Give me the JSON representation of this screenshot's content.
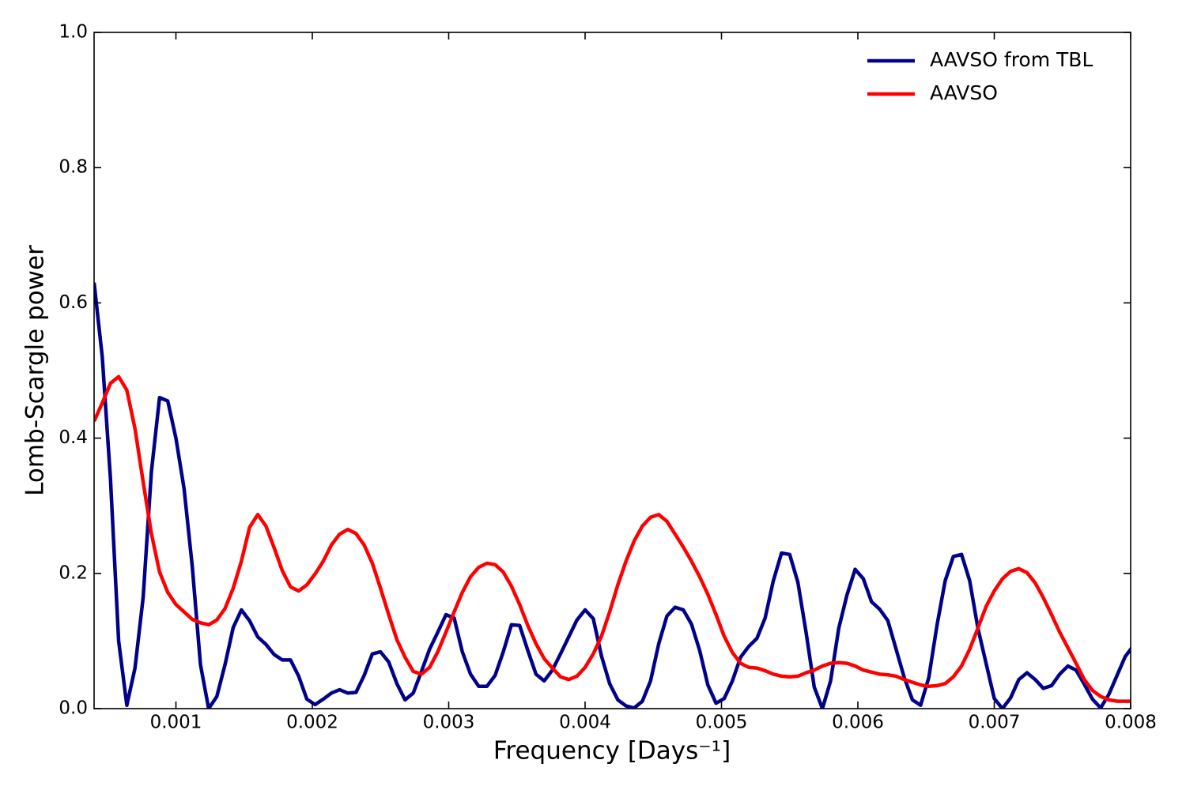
{
  "chart_data": {
    "type": "line",
    "xlabel": "Frequency [Days⁻¹]",
    "ylabel": "Lomb-Scargle power",
    "x": [
      0.0004,
      0.00046,
      0.00052,
      0.00058,
      0.00064,
      0.0007,
      0.00076,
      0.00082,
      0.00088,
      0.00094,
      0.001,
      0.00106,
      0.00112,
      0.00118,
      0.00124,
      0.0013,
      0.00136,
      0.00142,
      0.00148,
      0.00154,
      0.0016,
      0.00166,
      0.00172,
      0.00178,
      0.00184,
      0.0019,
      0.00196,
      0.00202,
      0.00208,
      0.00214,
      0.0022,
      0.00226,
      0.00232,
      0.00238,
      0.00244,
      0.0025,
      0.00256,
      0.00262,
      0.00268,
      0.00274,
      0.0028,
      0.00286,
      0.00292,
      0.00298,
      0.00304,
      0.0031,
      0.00316,
      0.00322,
      0.00328,
      0.00334,
      0.0034,
      0.00346,
      0.00352,
      0.00358,
      0.00364,
      0.0037,
      0.00376,
      0.00382,
      0.00388,
      0.00394,
      0.004,
      0.00406,
      0.00412,
      0.00418,
      0.00424,
      0.0043,
      0.00436,
      0.00442,
      0.00448,
      0.00454,
      0.0046,
      0.00466,
      0.00472,
      0.00478,
      0.00484,
      0.0049,
      0.00496,
      0.00502,
      0.00508,
      0.00514,
      0.0052,
      0.00526,
      0.00532,
      0.00538,
      0.00544,
      0.0055,
      0.00556,
      0.00562,
      0.00568,
      0.00574,
      0.0058,
      0.00586,
      0.00592,
      0.00598,
      0.00604,
      0.0061,
      0.00616,
      0.00622,
      0.00628,
      0.00634,
      0.0064,
      0.00646,
      0.00652,
      0.00658,
      0.00664,
      0.0067,
      0.00676,
      0.00682,
      0.00688,
      0.00694,
      0.007,
      0.00706,
      0.00712,
      0.00718,
      0.00724,
      0.0073,
      0.00736,
      0.00742,
      0.00748,
      0.00754,
      0.0076,
      0.00766,
      0.00772,
      0.00778,
      0.00784,
      0.0079,
      0.00796,
      0.00802
    ],
    "series": [
      {
        "name": "AAVSO from TBL",
        "color": "#00008b",
        "values": [
          0.63,
          0.52,
          0.34,
          0.1,
          0.005,
          0.06,
          0.165,
          0.35,
          0.46,
          0.455,
          0.4,
          0.325,
          0.21,
          0.065,
          0.0,
          0.018,
          0.065,
          0.12,
          0.146,
          0.13,
          0.106,
          0.095,
          0.08,
          0.072,
          0.072,
          0.048,
          0.014,
          0.006,
          0.014,
          0.023,
          0.028,
          0.023,
          0.024,
          0.049,
          0.081,
          0.084,
          0.069,
          0.037,
          0.013,
          0.023,
          0.055,
          0.088,
          0.113,
          0.139,
          0.134,
          0.084,
          0.051,
          0.033,
          0.033,
          0.049,
          0.084,
          0.124,
          0.123,
          0.086,
          0.051,
          0.041,
          0.057,
          0.081,
          0.106,
          0.131,
          0.146,
          0.133,
          0.078,
          0.037,
          0.013,
          0.004,
          0.001,
          0.011,
          0.041,
          0.096,
          0.137,
          0.15,
          0.146,
          0.125,
          0.086,
          0.035,
          0.008,
          0.015,
          0.041,
          0.076,
          0.092,
          0.104,
          0.134,
          0.189,
          0.23,
          0.228,
          0.187,
          0.113,
          0.032,
          0.0,
          0.041,
          0.119,
          0.168,
          0.206,
          0.192,
          0.158,
          0.147,
          0.13,
          0.088,
          0.046,
          0.013,
          0.005,
          0.046,
          0.123,
          0.189,
          0.225,
          0.228,
          0.189,
          0.119,
          0.067,
          0.015,
          0.0,
          0.016,
          0.043,
          0.053,
          0.043,
          0.03,
          0.034,
          0.051,
          0.063,
          0.057,
          0.036,
          0.014,
          0.001,
          0.021,
          0.049,
          0.077,
          0.093
        ]
      },
      {
        "name": "AAVSO",
        "color": "#ff0000",
        "values": [
          0.425,
          0.452,
          0.481,
          0.491,
          0.471,
          0.414,
          0.335,
          0.259,
          0.202,
          0.172,
          0.154,
          0.143,
          0.132,
          0.127,
          0.124,
          0.131,
          0.148,
          0.178,
          0.218,
          0.268,
          0.287,
          0.27,
          0.238,
          0.204,
          0.18,
          0.174,
          0.183,
          0.199,
          0.218,
          0.242,
          0.258,
          0.265,
          0.259,
          0.242,
          0.215,
          0.178,
          0.139,
          0.102,
          0.076,
          0.055,
          0.051,
          0.061,
          0.084,
          0.113,
          0.143,
          0.172,
          0.195,
          0.209,
          0.215,
          0.213,
          0.202,
          0.181,
          0.154,
          0.123,
          0.096,
          0.074,
          0.06,
          0.047,
          0.043,
          0.048,
          0.061,
          0.081,
          0.107,
          0.143,
          0.183,
          0.218,
          0.248,
          0.27,
          0.283,
          0.287,
          0.277,
          0.258,
          0.239,
          0.218,
          0.195,
          0.169,
          0.139,
          0.107,
          0.083,
          0.067,
          0.061,
          0.06,
          0.056,
          0.051,
          0.048,
          0.047,
          0.048,
          0.053,
          0.057,
          0.063,
          0.067,
          0.068,
          0.067,
          0.063,
          0.057,
          0.054,
          0.051,
          0.05,
          0.048,
          0.043,
          0.039,
          0.035,
          0.033,
          0.034,
          0.037,
          0.047,
          0.063,
          0.088,
          0.119,
          0.151,
          0.174,
          0.192,
          0.203,
          0.207,
          0.201,
          0.186,
          0.164,
          0.139,
          0.113,
          0.09,
          0.067,
          0.043,
          0.027,
          0.018,
          0.013,
          0.011,
          0.011,
          0.011
        ]
      }
    ],
    "xlim": [
      0.0004,
      0.008
    ],
    "xticks": [
      0.001,
      0.002,
      0.003,
      0.004,
      0.005,
      0.006,
      0.007,
      0.008
    ],
    "ylim": [
      0,
      1
    ],
    "yticks": [
      {
        "value": 0,
        "label": "0.0"
      },
      0.2,
      0.4,
      0.6,
      0.8,
      {
        "value": 1,
        "label": "1.0"
      }
    ],
    "legend": "upper right",
    "grid": false
  }
}
